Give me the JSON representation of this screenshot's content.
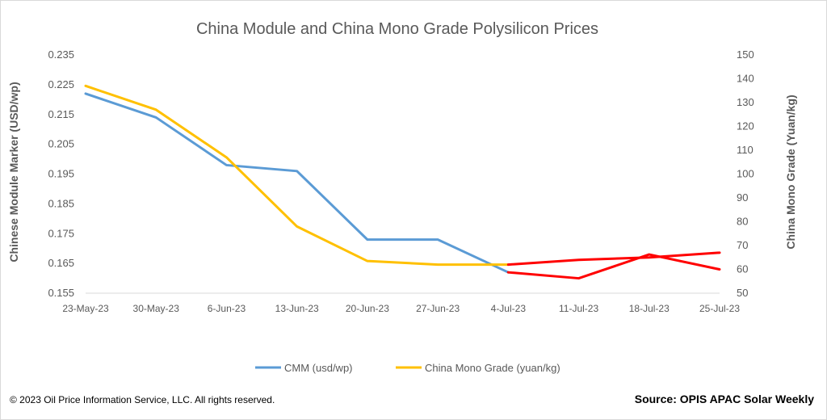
{
  "chart_data": {
    "type": "line",
    "title": "China Module and China Mono Grade Polysilicon Prices",
    "ylabel_left": "Chinese Module Marker (USD/wp)",
    "ylabel_right": "China Mono Grade (Yuan/kg)",
    "categories": [
      "23-May-23",
      "30-May-23",
      "6-Jun-23",
      "13-Jun-23",
      "20-Jun-23",
      "27-Jun-23",
      "4-Jul-23",
      "11-Jul-23",
      "18-Jul-23",
      "25-Jul-23"
    ],
    "ylim_left": [
      0.155,
      0.235
    ],
    "yticks_left": [
      "0.235",
      "0.225",
      "0.215",
      "0.205",
      "0.195",
      "0.185",
      "0.175",
      "0.165",
      "0.155"
    ],
    "ylim_right": [
      50,
      150
    ],
    "yticks_right": [
      "150",
      "140",
      "130",
      "120",
      "110",
      "100",
      "90",
      "80",
      "70",
      "60",
      "50"
    ],
    "grid": false,
    "legend_position": "bottom",
    "series": [
      {
        "name": "CMM (usd/wp)",
        "axis": "left",
        "color": "#5b9bd5",
        "forecast_color": "#ff0000",
        "values": [
          0.222,
          0.214,
          0.198,
          0.196,
          0.173,
          0.173,
          0.162,
          0.16,
          0.168,
          0.163
        ],
        "forecast_from_index": 6
      },
      {
        "name": "China Mono Grade (yuan/kg)",
        "axis": "right",
        "color": "#ffc000",
        "forecast_color": "#ff0000",
        "values": [
          137,
          127,
          107,
          78,
          63.5,
          62,
          62,
          64,
          65,
          67
        ],
        "forecast_from_index": 6
      }
    ]
  },
  "footer": {
    "copyright": "© 2023 Oil Price Information Service, LLC. All rights reserved.",
    "source": "Source: OPIS APAC Solar Weekly"
  }
}
